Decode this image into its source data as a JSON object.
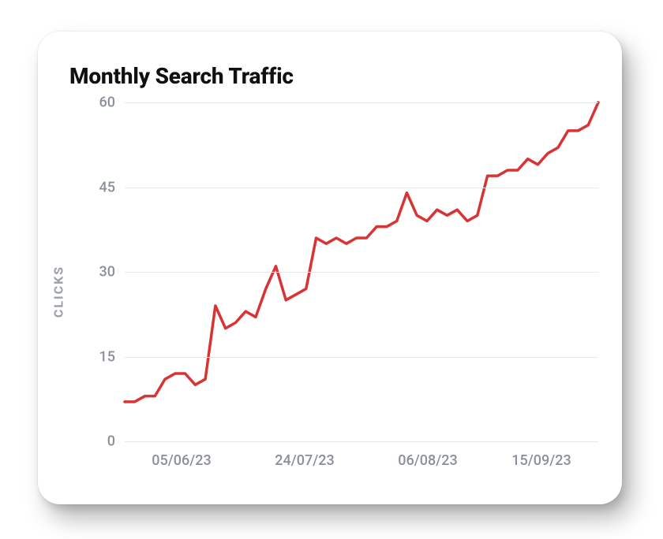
{
  "chart": {
    "type": "line",
    "title": "Monthly Search Traffic",
    "title_fontsize": 28,
    "title_color": "#111111",
    "ylabel": "CLICKS",
    "ylabel_fontsize": 16,
    "ylabel_color": "#9aa0a6",
    "background_color": "#ffffff",
    "card_border_radius": 28,
    "grid_color": "#e8e8e8",
    "axis_label_color": "#8a8f98",
    "axis_label_fontsize": 18,
    "ylim": [
      0,
      60
    ],
    "yticks": [
      0,
      15,
      30,
      45,
      60
    ],
    "xticks": [
      {
        "pos": 0.12,
        "label": "05/06/23"
      },
      {
        "pos": 0.38,
        "label": "24/07/23"
      },
      {
        "pos": 0.64,
        "label": "06/08/23"
      },
      {
        "pos": 0.88,
        "label": "15/09/23"
      }
    ],
    "line_color": "#d93434",
    "line_width": 3.5,
    "values": [
      7,
      7,
      8,
      8,
      11,
      12,
      12,
      10,
      11,
      24,
      20,
      21,
      23,
      22,
      27,
      31,
      25,
      26,
      27,
      36,
      35,
      36,
      35,
      36,
      36,
      38,
      38,
      39,
      44,
      40,
      39,
      41,
      40,
      41,
      39,
      40,
      47,
      47,
      48,
      48,
      50,
      49,
      51,
      52,
      55,
      55,
      56,
      60
    ]
  }
}
